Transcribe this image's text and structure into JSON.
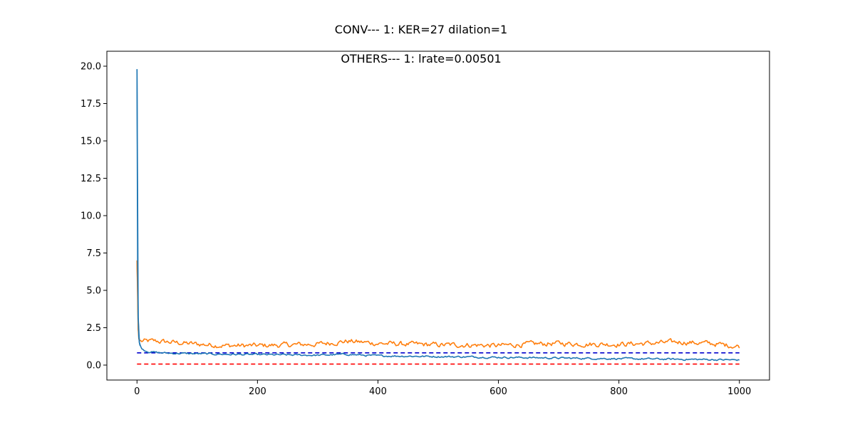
{
  "chart_data": {
    "type": "line",
    "title": "CONV--- 1: KER=27   dilation=1",
    "subtitle": "OTHERS--- 1: lrate=0.00501",
    "xlabel": "",
    "ylabel": "",
    "xlim": [
      -50,
      1050
    ],
    "ylim": [
      -1,
      21
    ],
    "x_ticks": [
      "0",
      "200",
      "400",
      "600",
      "800",
      "1000"
    ],
    "y_ticks": [
      "0.0",
      "2.5",
      "5.0",
      "7.5",
      "10.0",
      "12.5",
      "15.0",
      "17.5",
      "20.0"
    ],
    "grid": false,
    "legend": "none",
    "series": [
      {
        "color": "#1f77b4",
        "style": "solid",
        "points": [
          [
            0,
            19.8
          ],
          [
            1,
            7.0
          ],
          [
            2,
            3.2
          ],
          [
            3,
            1.9
          ],
          [
            4,
            1.5
          ],
          [
            5,
            1.3
          ],
          [
            7,
            1.15
          ],
          [
            10,
            1.05
          ],
          [
            15,
            0.95
          ],
          [
            20,
            0.9
          ],
          [
            30,
            0.85
          ],
          [
            40,
            0.82
          ],
          [
            50,
            0.8
          ],
          [
            75,
            0.78
          ],
          [
            100,
            0.76
          ],
          [
            150,
            0.72
          ],
          [
            200,
            0.7
          ],
          [
            250,
            0.68
          ],
          [
            300,
            0.66
          ],
          [
            350,
            0.72
          ],
          [
            380,
            0.65
          ],
          [
            400,
            0.62
          ],
          [
            450,
            0.6
          ],
          [
            500,
            0.57
          ],
          [
            550,
            0.55
          ],
          [
            600,
            0.52
          ],
          [
            650,
            0.5
          ],
          [
            700,
            0.47
          ],
          [
            750,
            0.45
          ],
          [
            800,
            0.43
          ],
          [
            850,
            0.41
          ],
          [
            900,
            0.39
          ],
          [
            950,
            0.37
          ],
          [
            1000,
            0.34
          ]
        ],
        "noise": 0.05
      },
      {
        "color": "#ff7f0e",
        "style": "solid",
        "points": [
          [
            0,
            7.0
          ],
          [
            1,
            5.2
          ],
          [
            2,
            2.4
          ],
          [
            3,
            1.75
          ],
          [
            5,
            1.6
          ],
          [
            10,
            1.6
          ],
          [
            30,
            1.6
          ],
          [
            50,
            1.55
          ],
          [
            100,
            1.4
          ],
          [
            150,
            1.3
          ],
          [
            200,
            1.3
          ],
          [
            250,
            1.35
          ],
          [
            300,
            1.4
          ],
          [
            350,
            1.6
          ],
          [
            400,
            1.45
          ],
          [
            450,
            1.4
          ],
          [
            500,
            1.35
          ],
          [
            550,
            1.35
          ],
          [
            600,
            1.3
          ],
          [
            650,
            1.4
          ],
          [
            700,
            1.45
          ],
          [
            750,
            1.4
          ],
          [
            800,
            1.4
          ],
          [
            850,
            1.45
          ],
          [
            900,
            1.55
          ],
          [
            950,
            1.45
          ],
          [
            1000,
            1.25
          ]
        ],
        "noise": 0.14
      },
      {
        "color": "#0000cd",
        "style": "dashed",
        "points": [
          [
            0,
            0.82
          ],
          [
            1000,
            0.82
          ]
        ]
      },
      {
        "color": "#ff0000",
        "style": "dashed",
        "points": [
          [
            0,
            0.07
          ],
          [
            1000,
            0.07
          ]
        ]
      }
    ]
  }
}
